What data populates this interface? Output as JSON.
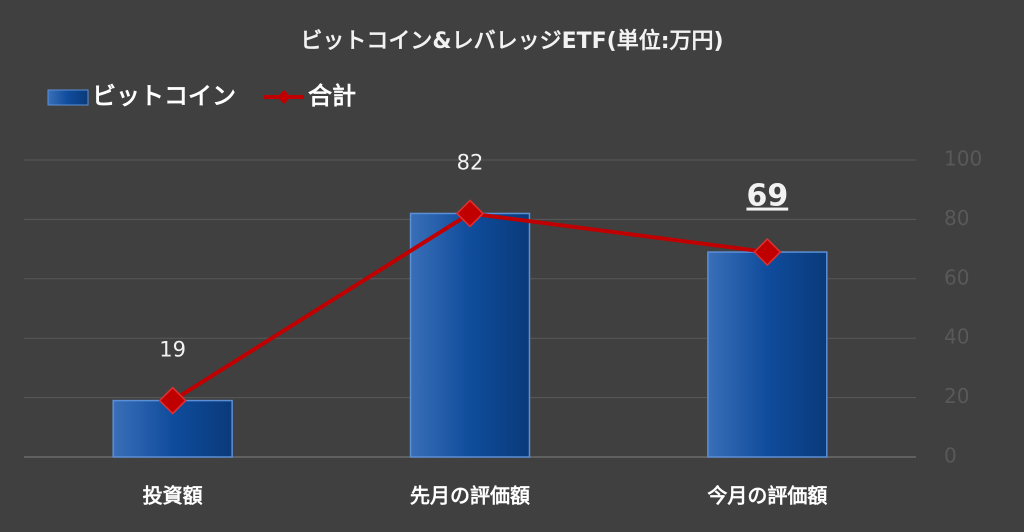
{
  "chart_data": {
    "type": "bar",
    "title": "ビットコイン&レバレッジETF(単位:万円)",
    "categories": [
      "投資額",
      "先月の評価額",
      "今月の評価額"
    ],
    "series": [
      {
        "name": "ビットコイン",
        "type": "bar",
        "color": "#0f4c9c",
        "values": [
          19,
          82,
          69
        ]
      },
      {
        "name": "合計",
        "type": "line",
        "color": "#c00000",
        "values": [
          19,
          82,
          69
        ]
      }
    ],
    "ylim": [
      0,
      100
    ],
    "yticks": [
      0,
      20,
      40,
      60,
      80,
      100
    ],
    "grid": true,
    "y_axis_side": "right",
    "legend": "top-left"
  }
}
